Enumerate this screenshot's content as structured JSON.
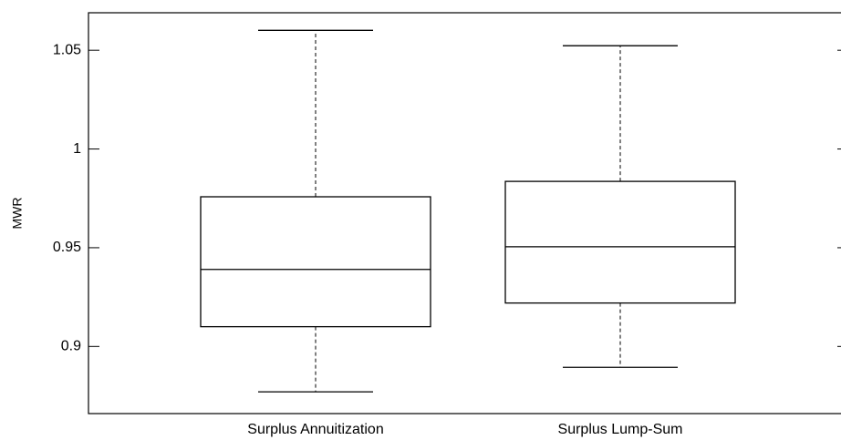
{
  "chart_data": {
    "type": "box",
    "y_label": "MWR",
    "categories": [
      "Surplus Annuitization",
      "Surplus Lump-Sum"
    ],
    "boxes": [
      {
        "whislo": 0.877,
        "q1": 0.91,
        "med": 0.939,
        "q3": 0.9758,
        "whishi": 1.0601
      },
      {
        "whislo": 0.8894,
        "q1": 0.922,
        "med": 0.9505,
        "q3": 0.9836,
        "whishi": 1.0523
      }
    ],
    "color": "#000000",
    "ylim": [
      0.866,
      1.069
    ],
    "yticks": [
      0.9,
      0.95,
      1,
      1.05
    ],
    "grid": false
  }
}
